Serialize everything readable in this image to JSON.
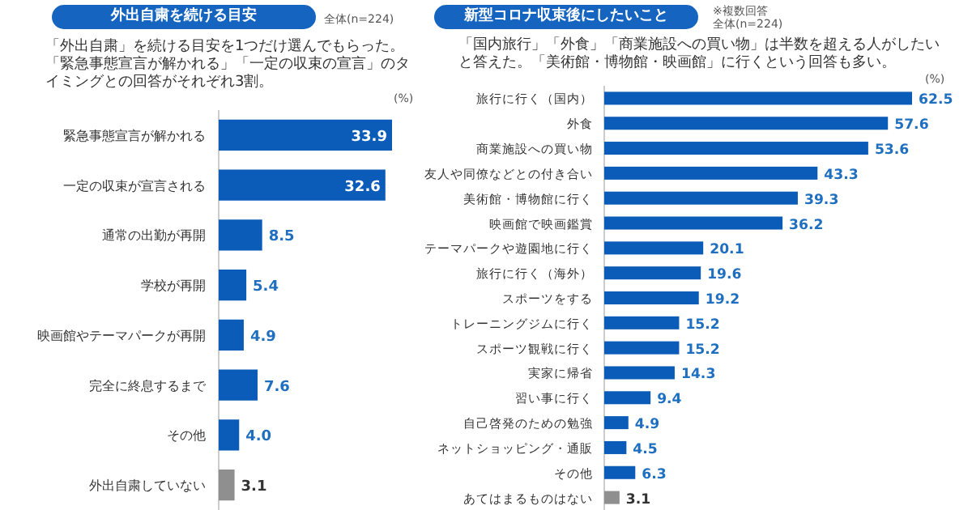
{
  "chart_data": [
    {
      "type": "bar",
      "orientation": "horizontal",
      "title": "外出自粛を続ける目安",
      "subtitle": "「外出自粛」を続ける目安を1つだけ選んでもらった。「緊急事態宣言が解かれる」「一定の収束の宣言」のタイミングとの回答がそれぞれ3割。",
      "annotations": [
        "全体(n=224)",
        "(%)"
      ],
      "categories": [
        "緊急事態宣言が解かれる",
        "一定の収束が宣言される",
        "通常の出勤が再開",
        "学校が再開",
        "映画館やテーマパークが再開",
        "完全に終息するまで",
        "その他",
        "外出自粛していない"
      ],
      "values": [
        33.9,
        32.6,
        8.5,
        5.4,
        4.9,
        7.6,
        4.0,
        3.1
      ],
      "colors": [
        "#0b5cb8",
        "#0b5cb8",
        "#0b5cb8",
        "#0b5cb8",
        "#0b5cb8",
        "#0b5cb8",
        "#0b5cb8",
        "#8f8f8f"
      ],
      "value_labels": [
        "33.9",
        "32.6",
        "8.5",
        "5.4",
        "4.9",
        "7.6",
        "4.0",
        "3.1"
      ]
    },
    {
      "type": "bar",
      "orientation": "horizontal",
      "title": "新型コロナ収束後にしたいこと",
      "subtitle": "「国内旅行」「外食」「商業施設への買い物」は半数を超える人がしたいと答えた。「美術館・博物館・映画館」に行くという回答も多い。",
      "annotations": [
        "※複数回答",
        "全体(n=224)",
        "(%)"
      ],
      "categories": [
        "旅行に行く（国内）",
        "外食",
        "商業施設への買い物",
        "友人や同僚などとの付き合い",
        "美術館・博物館に行く",
        "映画館で映画鑑賞",
        "テーマパークや遊園地に行く",
        "旅行に行く（海外）",
        "スポーツをする",
        "トレーニングジムに行く",
        "スポーツ観戦に行く",
        "実家に帰省",
        "習い事に行く",
        "自己啓発のための勉強",
        "ネットショッピング・通販",
        "その他",
        "あてはまるものはない"
      ],
      "values": [
        62.5,
        57.6,
        53.6,
        43.3,
        39.3,
        36.2,
        20.1,
        19.6,
        19.2,
        15.2,
        15.2,
        14.3,
        9.4,
        4.9,
        4.5,
        6.3,
        3.1
      ],
      "colors": [
        "#0b5cb8",
        "#0b5cb8",
        "#0b5cb8",
        "#0b5cb8",
        "#0b5cb8",
        "#0b5cb8",
        "#0b5cb8",
        "#0b5cb8",
        "#0b5cb8",
        "#0b5cb8",
        "#0b5cb8",
        "#0b5cb8",
        "#0b5cb8",
        "#0b5cb8",
        "#0b5cb8",
        "#0b5cb8",
        "#8f8f8f"
      ],
      "value_labels": [
        "62.5",
        "57.6",
        "53.6",
        "43.3",
        "39.3",
        "36.2",
        "20.1",
        "19.6",
        "19.2",
        "15.2",
        "15.2",
        "14.3",
        "9.4",
        "4.9",
        "4.5",
        "6.3",
        "3.1"
      ]
    }
  ]
}
